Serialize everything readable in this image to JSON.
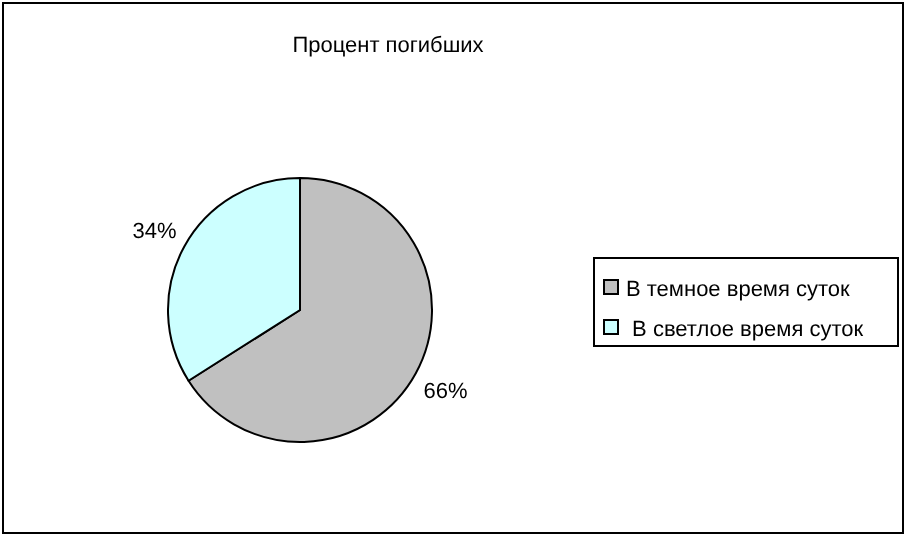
{
  "chart_data": {
    "type": "pie",
    "title": "Процент погибших",
    "categories": [
      "В темное время суток",
      " В светлое время суток"
    ],
    "values": [
      66,
      34
    ],
    "colors": [
      "#c0c0c0",
      "#ccffff"
    ],
    "value_labels": [
      "66%",
      "34%"
    ],
    "legend": "right"
  }
}
